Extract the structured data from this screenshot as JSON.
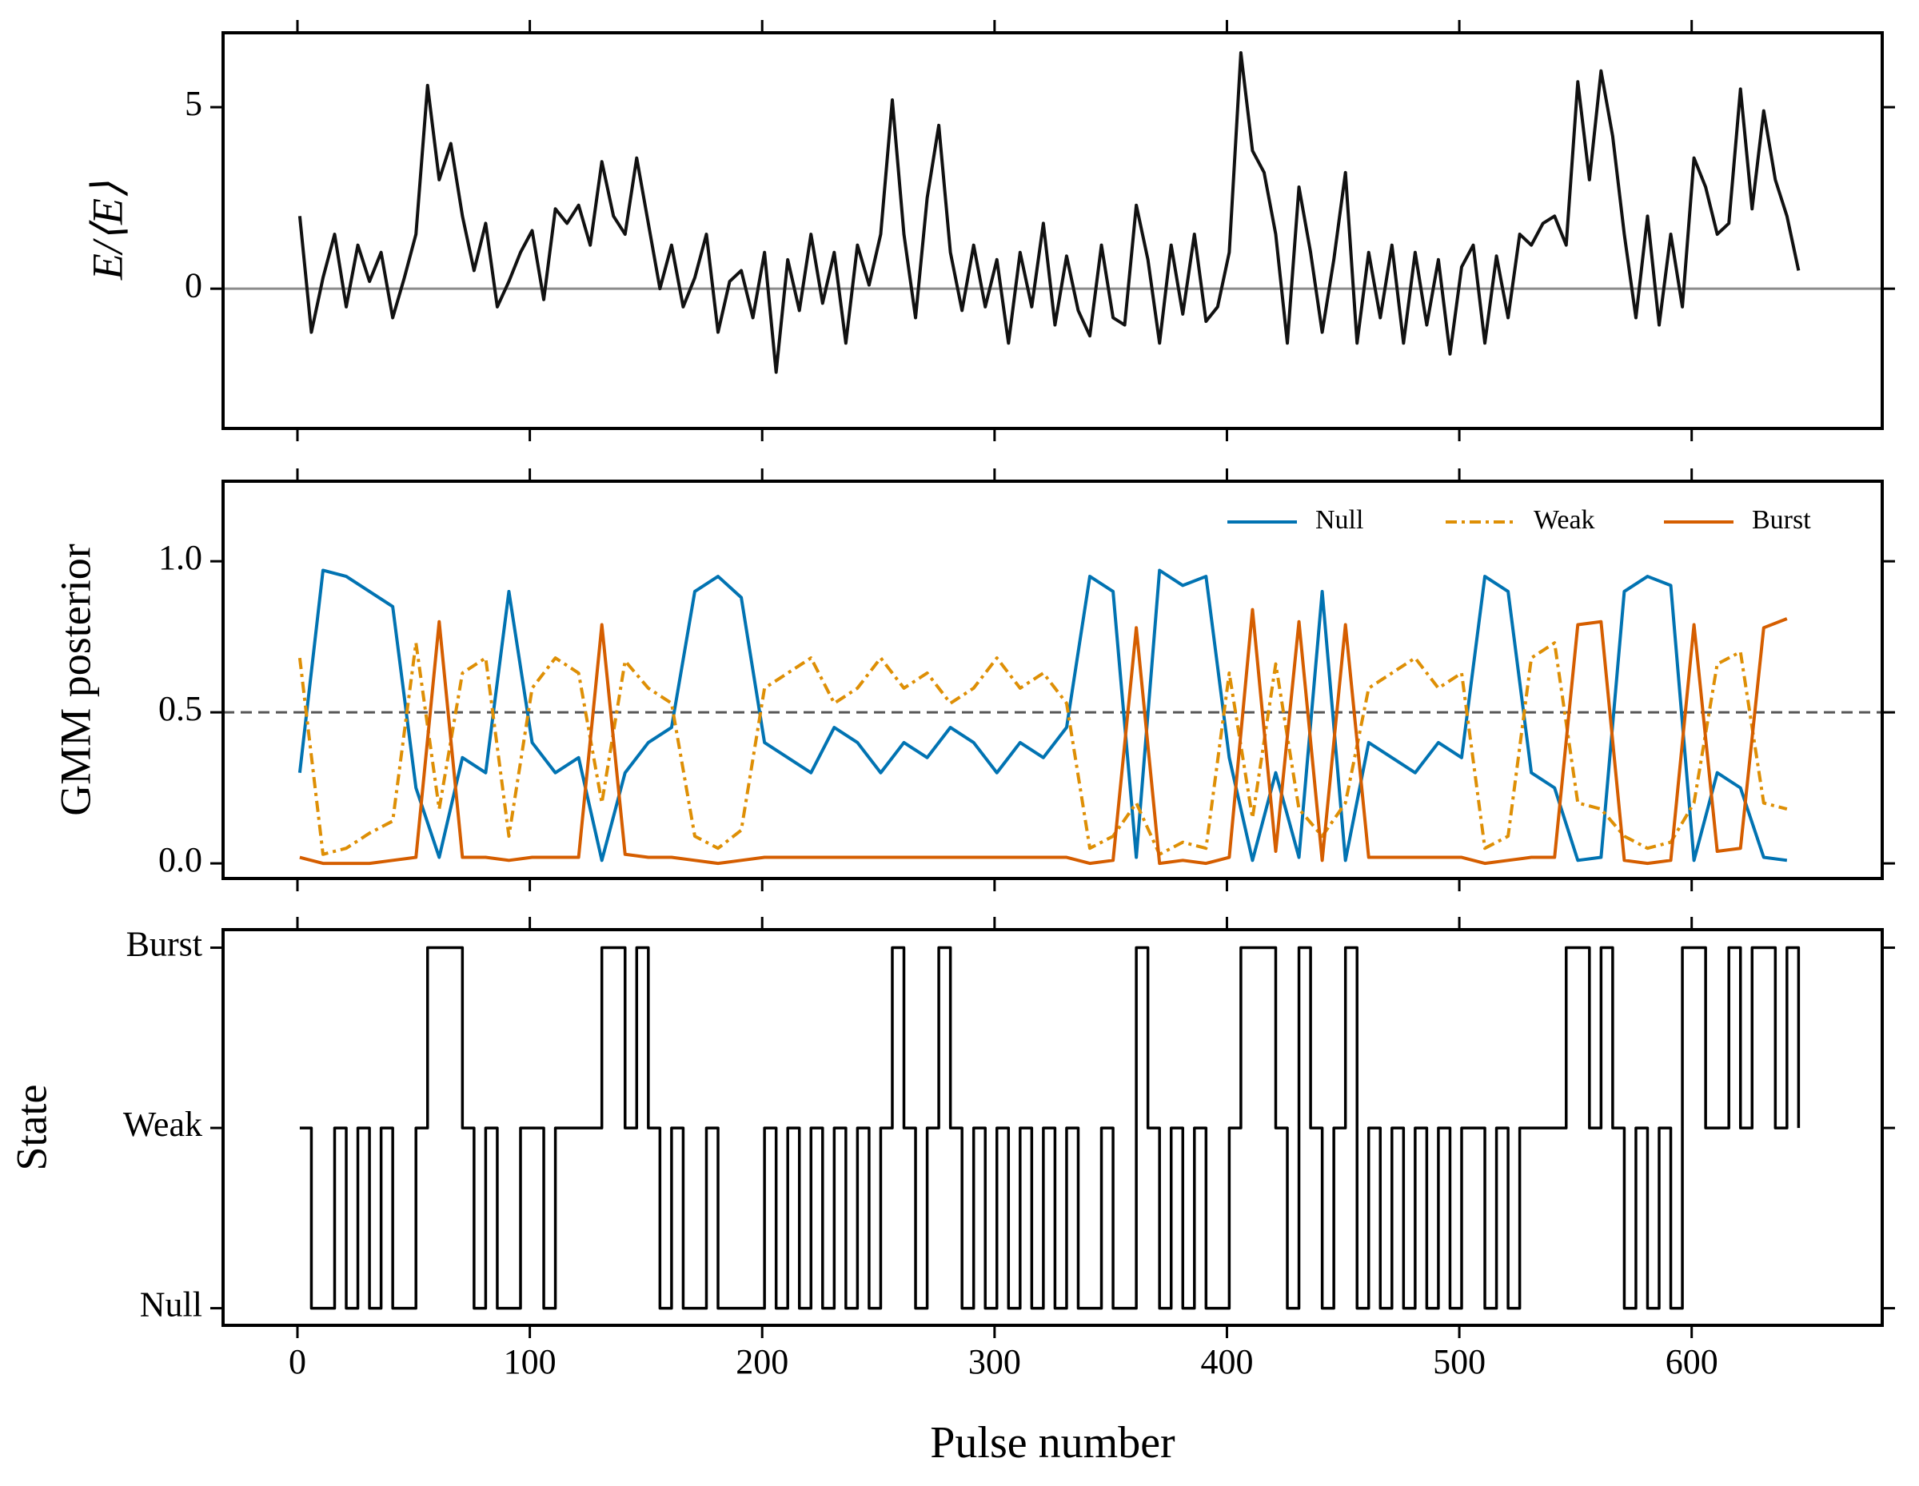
{
  "chart_data": [
    {
      "type": "line",
      "ylabel": "E/⟨E⟩",
      "ylim": [
        -3.85,
        7.05
      ],
      "yticks": [
        0,
        5
      ],
      "reference_line": {
        "y": 0,
        "color": "#8c8c8c",
        "style": "solid"
      },
      "x": [
        1,
        6,
        11,
        16,
        21,
        26,
        31,
        36,
        41,
        46,
        51,
        56,
        61,
        66,
        71,
        76,
        81,
        86,
        91,
        96,
        101,
        106,
        111,
        116,
        121,
        126,
        131,
        136,
        141,
        146,
        151,
        156,
        161,
        166,
        171,
        176,
        181,
        186,
        191,
        196,
        201,
        206,
        211,
        216,
        221,
        226,
        231,
        236,
        241,
        246,
        251,
        256,
        261,
        266,
        271,
        276,
        281,
        286,
        291,
        296,
        301,
        306,
        311,
        316,
        321,
        326,
        331,
        336,
        341,
        346,
        351,
        356,
        361,
        366,
        371,
        376,
        381,
        386,
        391,
        396,
        401,
        406,
        411,
        416,
        421,
        426,
        431,
        436,
        441,
        446,
        451,
        456,
        461,
        466,
        471,
        476,
        481,
        486,
        491,
        496,
        501,
        506,
        511,
        516,
        521,
        526,
        531,
        536,
        541,
        546,
        551,
        556,
        561,
        566,
        571,
        576,
        581,
        586,
        591,
        596,
        601,
        606,
        611,
        616,
        621,
        626,
        631,
        636,
        641,
        646
      ],
      "series": [
        {
          "color": "#111111",
          "values": [
            2.0,
            -1.2,
            0.3,
            1.5,
            -0.5,
            1.2,
            0.2,
            1.0,
            -0.8,
            0.3,
            1.5,
            5.6,
            3.0,
            4.0,
            2.0,
            0.5,
            1.8,
            -0.5,
            0.2,
            1.0,
            1.6,
            -0.3,
            2.2,
            1.8,
            2.3,
            1.2,
            3.5,
            2.0,
            1.5,
            3.6,
            1.8,
            0.0,
            1.2,
            -0.5,
            0.3,
            1.5,
            -1.2,
            0.2,
            0.5,
            -0.8,
            1.0,
            -2.3,
            0.8,
            -0.6,
            1.5,
            -0.4,
            1.0,
            -1.5,
            1.2,
            0.1,
            1.5,
            5.2,
            1.5,
            -0.8,
            2.5,
            4.5,
            1.0,
            -0.6,
            1.2,
            -0.5,
            0.8,
            -1.5,
            1.0,
            -0.5,
            1.8,
            -1.0,
            0.9,
            -0.6,
            -1.3,
            1.2,
            -0.8,
            -1.0,
            2.3,
            0.8,
            -1.5,
            1.2,
            -0.7,
            1.5,
            -0.9,
            -0.5,
            1.0,
            6.5,
            3.8,
            3.2,
            1.5,
            -1.5,
            2.8,
            1.0,
            -1.2,
            0.8,
            3.2,
            -1.5,
            1.0,
            -0.8,
            1.2,
            -1.5,
            1.0,
            -1.0,
            0.8,
            -1.8,
            0.6,
            1.2,
            -1.5,
            0.9,
            -0.8,
            1.5,
            1.2,
            1.8,
            2.0,
            1.2,
            5.7,
            3.0,
            6.0,
            4.2,
            1.5,
            -0.8,
            2.0,
            -1.0,
            1.5,
            -0.5,
            3.6,
            2.8,
            1.5,
            1.8,
            5.5,
            2.2,
            4.9,
            3.0,
            2.0,
            0.5
          ]
        }
      ]
    },
    {
      "type": "line",
      "ylabel": "GMM posterior",
      "ylim": [
        -0.05,
        1.265
      ],
      "yticks": [
        {
          "value": 0,
          "label": "0.0"
        },
        {
          "value": 0.5,
          "label": "0.5"
        },
        {
          "value": 1,
          "label": "1.0"
        }
      ],
      "reference_line": {
        "y": 0.5,
        "color": "#555555",
        "style": "dashed"
      },
      "legend": "upper right",
      "x": [
        1,
        11,
        21,
        31,
        41,
        51,
        61,
        71,
        81,
        91,
        101,
        111,
        121,
        131,
        141,
        151,
        161,
        171,
        181,
        191,
        201,
        211,
        221,
        231,
        241,
        251,
        261,
        271,
        281,
        291,
        301,
        311,
        321,
        331,
        341,
        351,
        361,
        371,
        381,
        391,
        401,
        411,
        421,
        431,
        441,
        451,
        461,
        471,
        481,
        491,
        501,
        511,
        521,
        531,
        541,
        551,
        561,
        571,
        581,
        591,
        601,
        611,
        621,
        631,
        641
      ],
      "series": [
        {
          "name": "Null",
          "color": "#0173b2",
          "style": "solid",
          "values": [
            0.3,
            0.97,
            0.95,
            0.9,
            0.85,
            0.25,
            0.02,
            0.35,
            0.3,
            0.9,
            0.4,
            0.3,
            0.35,
            0.01,
            0.3,
            0.4,
            0.45,
            0.9,
            0.95,
            0.88,
            0.4,
            0.35,
            0.3,
            0.45,
            0.4,
            0.3,
            0.4,
            0.35,
            0.45,
            0.4,
            0.3,
            0.4,
            0.35,
            0.45,
            0.95,
            0.9,
            0.02,
            0.97,
            0.92,
            0.95,
            0.35,
            0.01,
            0.3,
            0.02,
            0.9,
            0.01,
            0.4,
            0.35,
            0.3,
            0.4,
            0.35,
            0.95,
            0.9,
            0.3,
            0.25,
            0.01,
            0.02,
            0.9,
            0.95,
            0.92,
            0.01,
            0.3,
            0.25,
            0.02,
            0.01
          ]
        },
        {
          "name": "Weak",
          "color": "#de8f05",
          "style": "dashdot",
          "values": [
            0.68,
            0.03,
            0.05,
            0.1,
            0.14,
            0.73,
            0.18,
            0.63,
            0.68,
            0.09,
            0.58,
            0.68,
            0.63,
            0.2,
            0.67,
            0.58,
            0.53,
            0.09,
            0.05,
            0.11,
            0.58,
            0.63,
            0.68,
            0.53,
            0.58,
            0.68,
            0.58,
            0.63,
            0.53,
            0.58,
            0.68,
            0.58,
            0.63,
            0.53,
            0.05,
            0.09,
            0.2,
            0.03,
            0.07,
            0.05,
            0.63,
            0.15,
            0.66,
            0.18,
            0.09,
            0.2,
            0.58,
            0.63,
            0.68,
            0.58,
            0.63,
            0.05,
            0.09,
            0.68,
            0.73,
            0.2,
            0.18,
            0.09,
            0.05,
            0.07,
            0.2,
            0.66,
            0.7,
            0.2,
            0.18
          ]
        },
        {
          "name": "Burst",
          "color": "#d55e00",
          "style": "solid",
          "values": [
            0.02,
            0,
            0,
            0,
            0.01,
            0.02,
            0.8,
            0.02,
            0.02,
            0.01,
            0.02,
            0.02,
            0.02,
            0.79,
            0.03,
            0.02,
            0.02,
            0.01,
            0,
            0.01,
            0.02,
            0.02,
            0.02,
            0.02,
            0.02,
            0.02,
            0.02,
            0.02,
            0.02,
            0.02,
            0.02,
            0.02,
            0.02,
            0.02,
            0,
            0.01,
            0.78,
            0,
            0.01,
            0,
            0.02,
            0.84,
            0.04,
            0.8,
            0.01,
            0.79,
            0.02,
            0.02,
            0.02,
            0.02,
            0.02,
            0,
            0.01,
            0.02,
            0.02,
            0.79,
            0.8,
            0.01,
            0,
            0.01,
            0.79,
            0.04,
            0.05,
            0.78,
            0.81
          ]
        }
      ]
    },
    {
      "type": "step",
      "ylabel": "State",
      "xlabel": "Pulse number",
      "xlim": [
        -32,
        682
      ],
      "xticks": [
        0,
        100,
        200,
        300,
        400,
        500,
        600
      ],
      "ylim": [
        -0.095,
        2.1
      ],
      "yticks": [
        {
          "value": 0,
          "label": "Null"
        },
        {
          "value": 1,
          "label": "Weak"
        },
        {
          "value": 2,
          "label": "Burst"
        }
      ],
      "x": [
        1,
        6,
        11,
        16,
        21,
        26,
        31,
        36,
        41,
        46,
        51,
        56,
        61,
        66,
        71,
        76,
        81,
        86,
        91,
        96,
        101,
        106,
        111,
        116,
        121,
        126,
        131,
        136,
        141,
        146,
        151,
        156,
        161,
        166,
        171,
        176,
        181,
        186,
        191,
        196,
        201,
        206,
        211,
        216,
        221,
        226,
        231,
        236,
        241,
        246,
        251,
        256,
        261,
        266,
        271,
        276,
        281,
        286,
        291,
        296,
        301,
        306,
        311,
        316,
        321,
        326,
        331,
        336,
        341,
        346,
        351,
        356,
        361,
        366,
        371,
        376,
        381,
        386,
        391,
        396,
        401,
        406,
        411,
        416,
        421,
        426,
        431,
        436,
        441,
        446,
        451,
        456,
        461,
        466,
        471,
        476,
        481,
        486,
        491,
        496,
        501,
        506,
        511,
        516,
        521,
        526,
        531,
        536,
        541,
        546,
        551,
        556,
        561,
        566,
        571,
        576,
        581,
        586,
        591,
        596,
        601,
        606,
        611,
        616,
        621,
        626,
        631,
        636,
        641,
        646
      ],
      "series": [
        {
          "color": "#000000",
          "values": [
            1,
            0,
            0,
            1,
            0,
            1,
            0,
            1,
            0,
            0,
            1,
            2,
            2,
            2,
            1,
            0,
            1,
            0,
            0,
            1,
            1,
            0,
            1,
            1,
            1,
            1,
            2,
            2,
            1,
            2,
            1,
            0,
            1,
            0,
            0,
            1,
            0,
            0,
            0,
            0,
            1,
            0,
            1,
            0,
            1,
            0,
            1,
            0,
            1,
            0,
            1,
            2,
            1,
            0,
            1,
            2,
            1,
            0,
            1,
            0,
            1,
            0,
            1,
            0,
            1,
            0,
            1,
            0,
            0,
            1,
            0,
            0,
            2,
            1,
            0,
            1,
            0,
            1,
            0,
            0,
            1,
            2,
            2,
            2,
            1,
            0,
            2,
            1,
            0,
            1,
            2,
            0,
            1,
            0,
            1,
            0,
            1,
            0,
            1,
            0,
            1,
            1,
            0,
            1,
            0,
            1,
            1,
            1,
            1,
            2,
            2,
            1,
            2,
            1,
            0,
            1,
            0,
            1,
            0,
            2,
            2,
            1,
            1,
            2,
            1,
            2,
            2,
            1,
            2,
            1
          ]
        }
      ]
    }
  ]
}
